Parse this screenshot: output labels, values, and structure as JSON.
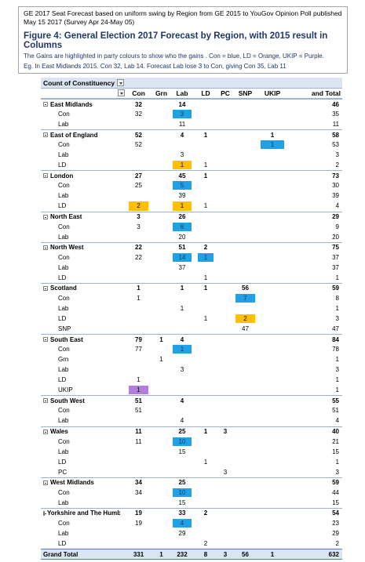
{
  "header": {
    "meta_line1": "GE 2017 Seat Forecast  based on uniform swing by Region from GE 2015 to YouGov Opinion Poll published",
    "meta_line2": "May 15 2017 (Survey Apr 24-May 05)",
    "title": "Figure 4: General Election 2017 Forecast by Region, with 2015 result in Columns",
    "desc_line1": "The Gains are  highlighted in party colours to show who the gains . Con = blue,  LD = Orange,   UKIP = Purple.",
    "desc_line2": "Eg.  In East Midlands 2015. Con 32, Lab 14. Forecast Lab lose 3 to Con, giving Con 35, Lab 11"
  },
  "pivot": {
    "corner_label": "Count of Constituency",
    "columns": [
      "Con",
      "Grn",
      "Lab",
      "LD",
      "PC",
      "SNP",
      "UKIP",
      "and Total"
    ],
    "rows": [
      {
        "type": "region",
        "label": "East Midlands",
        "con": "32",
        "grn": "",
        "lab": "14",
        "ld": "",
        "pc": "",
        "snp": "",
        "ukip": "",
        "total": "46"
      },
      {
        "type": "party",
        "label": "Con",
        "con": "32",
        "grn": "",
        "lab": "3",
        "ld": "",
        "pc": "",
        "snp": "",
        "ukip": "",
        "total": "35",
        "hl": {
          "lab": "blue"
        }
      },
      {
        "type": "party",
        "label": "Lab",
        "con": "",
        "grn": "",
        "lab": "11",
        "ld": "",
        "pc": "",
        "snp": "",
        "ukip": "",
        "total": "11"
      },
      {
        "type": "region",
        "label": "East of England",
        "con": "52",
        "grn": "",
        "lab": "4",
        "ld": "1",
        "pc": "",
        "snp": "",
        "ukip": "1",
        "total": "58"
      },
      {
        "type": "party",
        "label": "Con",
        "con": "52",
        "grn": "",
        "lab": "",
        "ld": "",
        "pc": "",
        "snp": "",
        "ukip": "1",
        "total": "53",
        "hl": {
          "ukip": "blue"
        }
      },
      {
        "type": "party",
        "label": "Lab",
        "con": "",
        "grn": "",
        "lab": "3",
        "ld": "",
        "pc": "",
        "snp": "",
        "ukip": "",
        "total": "3"
      },
      {
        "type": "party",
        "label": "LD",
        "con": "",
        "grn": "",
        "lab": "1",
        "ld": "1",
        "pc": "",
        "snp": "",
        "ukip": "",
        "total": "2",
        "hl": {
          "lab": "orange"
        }
      },
      {
        "type": "region",
        "label": "London",
        "con": "27",
        "grn": "",
        "lab": "45",
        "ld": "1",
        "pc": "",
        "snp": "",
        "ukip": "",
        "total": "73"
      },
      {
        "type": "party",
        "label": "Con",
        "con": "25",
        "grn": "",
        "lab": "5",
        "ld": "",
        "pc": "",
        "snp": "",
        "ukip": "",
        "total": "30",
        "hl": {
          "lab": "blue"
        }
      },
      {
        "type": "party",
        "label": "Lab",
        "con": "",
        "grn": "",
        "lab": "39",
        "ld": "",
        "pc": "",
        "snp": "",
        "ukip": "",
        "total": "39"
      },
      {
        "type": "party",
        "label": "LD",
        "con": "2",
        "grn": "",
        "lab": "1",
        "ld": "1",
        "pc": "",
        "snp": "",
        "ukip": "",
        "total": "4",
        "hl": {
          "con": "orange",
          "lab": "orange"
        }
      },
      {
        "type": "region",
        "label": "North East",
        "con": "3",
        "grn": "",
        "lab": "26",
        "ld": "",
        "pc": "",
        "snp": "",
        "ukip": "",
        "total": "29"
      },
      {
        "type": "party",
        "label": "Con",
        "con": "3",
        "grn": "",
        "lab": "6",
        "ld": "",
        "pc": "",
        "snp": "",
        "ukip": "",
        "total": "9",
        "hl": {
          "lab": "blue"
        }
      },
      {
        "type": "party",
        "label": "Lab",
        "con": "",
        "grn": "",
        "lab": "20",
        "ld": "",
        "pc": "",
        "snp": "",
        "ukip": "",
        "total": "20"
      },
      {
        "type": "region",
        "label": "North West",
        "con": "22",
        "grn": "",
        "lab": "51",
        "ld": "2",
        "pc": "",
        "snp": "",
        "ukip": "",
        "total": "75"
      },
      {
        "type": "party",
        "label": "Con",
        "con": "22",
        "grn": "",
        "lab": "14",
        "ld": "1",
        "pc": "",
        "snp": "",
        "ukip": "",
        "total": "37",
        "hl": {
          "lab": "blue",
          "ld": "blue"
        }
      },
      {
        "type": "party",
        "label": "Lab",
        "con": "",
        "grn": "",
        "lab": "37",
        "ld": "",
        "pc": "",
        "snp": "",
        "ukip": "",
        "total": "37"
      },
      {
        "type": "party",
        "label": "LD",
        "con": "",
        "grn": "",
        "lab": "",
        "ld": "1",
        "pc": "",
        "snp": "",
        "ukip": "",
        "total": "1"
      },
      {
        "type": "region",
        "label": "Scotland",
        "con": "1",
        "grn": "",
        "lab": "1",
        "ld": "1",
        "pc": "",
        "snp": "56",
        "ukip": "",
        "total": "59"
      },
      {
        "type": "party",
        "label": "Con",
        "con": "1",
        "grn": "",
        "lab": "",
        "ld": "",
        "pc": "",
        "snp": "7",
        "ukip": "",
        "total": "8",
        "hl": {
          "snp": "blue"
        }
      },
      {
        "type": "party",
        "label": "Lab",
        "con": "",
        "grn": "",
        "lab": "1",
        "ld": "",
        "pc": "",
        "snp": "",
        "ukip": "",
        "total": "1"
      },
      {
        "type": "party",
        "label": "LD",
        "con": "",
        "grn": "",
        "lab": "",
        "ld": "1",
        "pc": "",
        "snp": "2",
        "ukip": "",
        "total": "3",
        "hl": {
          "snp": "orange"
        }
      },
      {
        "type": "party",
        "label": "SNP",
        "con": "",
        "grn": "",
        "lab": "",
        "ld": "",
        "pc": "",
        "snp": "47",
        "ukip": "",
        "total": "47"
      },
      {
        "type": "region",
        "label": "South East",
        "con": "79",
        "grn": "1",
        "lab": "4",
        "ld": "",
        "pc": "",
        "snp": "",
        "ukip": "",
        "total": "84"
      },
      {
        "type": "party",
        "label": "Con",
        "con": "77",
        "grn": "",
        "lab": "1",
        "ld": "",
        "pc": "",
        "snp": "",
        "ukip": "",
        "total": "78",
        "hl": {
          "lab": "blue"
        }
      },
      {
        "type": "party",
        "label": "Grn",
        "con": "",
        "grn": "1",
        "lab": "",
        "ld": "",
        "pc": "",
        "snp": "",
        "ukip": "",
        "total": "1"
      },
      {
        "type": "party",
        "label": "Lab",
        "con": "",
        "grn": "",
        "lab": "3",
        "ld": "",
        "pc": "",
        "snp": "",
        "ukip": "",
        "total": "3"
      },
      {
        "type": "party",
        "label": "LD",
        "con": "1",
        "grn": "",
        "lab": "",
        "ld": "",
        "pc": "",
        "snp": "",
        "ukip": "",
        "total": "1"
      },
      {
        "type": "party",
        "label": "UKIP",
        "con": "1",
        "grn": "",
        "lab": "",
        "ld": "",
        "pc": "",
        "snp": "",
        "ukip": "",
        "total": "1",
        "hl": {
          "con": "purple"
        }
      },
      {
        "type": "region",
        "label": "South West",
        "con": "51",
        "grn": "",
        "lab": "4",
        "ld": "",
        "pc": "",
        "snp": "",
        "ukip": "",
        "total": "55"
      },
      {
        "type": "party",
        "label": "Con",
        "con": "51",
        "grn": "",
        "lab": "",
        "ld": "",
        "pc": "",
        "snp": "",
        "ukip": "",
        "total": "51"
      },
      {
        "type": "party",
        "label": "Lab",
        "con": "",
        "grn": "",
        "lab": "4",
        "ld": "",
        "pc": "",
        "snp": "",
        "ukip": "",
        "total": "4"
      },
      {
        "type": "region",
        "label": "Wales",
        "con": "11",
        "grn": "",
        "lab": "25",
        "ld": "1",
        "pc": "3",
        "snp": "",
        "ukip": "",
        "total": "40"
      },
      {
        "type": "party",
        "label": "Con",
        "con": "11",
        "grn": "",
        "lab": "10",
        "ld": "",
        "pc": "",
        "snp": "",
        "ukip": "",
        "total": "21",
        "hl": {
          "lab": "blue"
        }
      },
      {
        "type": "party",
        "label": "Lab",
        "con": "",
        "grn": "",
        "lab": "15",
        "ld": "",
        "pc": "",
        "snp": "",
        "ukip": "",
        "total": "15"
      },
      {
        "type": "party",
        "label": "LD",
        "con": "",
        "grn": "",
        "lab": "",
        "ld": "1",
        "pc": "",
        "snp": "",
        "ukip": "",
        "total": "1"
      },
      {
        "type": "party",
        "label": "PC",
        "con": "",
        "grn": "",
        "lab": "",
        "ld": "",
        "pc": "3",
        "snp": "",
        "ukip": "",
        "total": "3"
      },
      {
        "type": "region",
        "label": "West Midlands",
        "con": "34",
        "grn": "",
        "lab": "25",
        "ld": "",
        "pc": "",
        "snp": "",
        "ukip": "",
        "total": "59"
      },
      {
        "type": "party",
        "label": "Con",
        "con": "34",
        "grn": "",
        "lab": "10",
        "ld": "",
        "pc": "",
        "snp": "",
        "ukip": "",
        "total": "44",
        "hl": {
          "lab": "blue"
        }
      },
      {
        "type": "party",
        "label": "Lab",
        "con": "",
        "grn": "",
        "lab": "15",
        "ld": "",
        "pc": "",
        "snp": "",
        "ukip": "",
        "total": "15"
      },
      {
        "type": "region",
        "label": "Yorkshire and The Humber",
        "con": "19",
        "grn": "",
        "lab": "33",
        "ld": "2",
        "pc": "",
        "snp": "",
        "ukip": "",
        "total": "54"
      },
      {
        "type": "party",
        "label": "Con",
        "con": "19",
        "grn": "",
        "lab": "4",
        "ld": "",
        "pc": "",
        "snp": "",
        "ukip": "",
        "total": "23",
        "hl": {
          "lab": "blue"
        }
      },
      {
        "type": "party",
        "label": "Lab",
        "con": "",
        "grn": "",
        "lab": "29",
        "ld": "",
        "pc": "",
        "snp": "",
        "ukip": "",
        "total": "29"
      },
      {
        "type": "party",
        "label": "LD",
        "con": "",
        "grn": "",
        "lab": "",
        "ld": "2",
        "pc": "",
        "snp": "",
        "ukip": "",
        "total": "2"
      }
    ],
    "grand_total": {
      "label": "Grand Total",
      "con": "331",
      "grn": "1",
      "lab": "232",
      "ld": "8",
      "pc": "3",
      "snp": "56",
      "ukip": "1",
      "total": "632"
    }
  },
  "colors": {
    "con_gain": "#21a0e6",
    "ld_gain": "#ffc000",
    "ukip_gain": "#b27fd8",
    "header_fill": "#dbe5f1"
  }
}
